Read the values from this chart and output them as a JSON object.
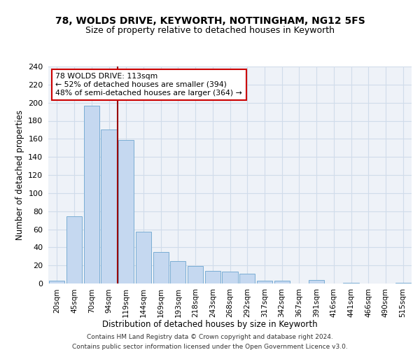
{
  "title": "78, WOLDS DRIVE, KEYWORTH, NOTTINGHAM, NG12 5FS",
  "subtitle": "Size of property relative to detached houses in Keyworth",
  "xlabel": "Distribution of detached houses by size in Keyworth",
  "ylabel": "Number of detached properties",
  "bar_color": "#c5d8f0",
  "bar_edge_color": "#7aadd4",
  "grid_color": "#d0dcea",
  "background_color": "#eef2f8",
  "annotation_box_color": "#cc0000",
  "vline_color": "#990000",
  "vline_x_index": 3.5,
  "annotation_lines": [
    "78 WOLDS DRIVE: 113sqm",
    "← 52% of detached houses are smaller (394)",
    "48% of semi-detached houses are larger (364) →"
  ],
  "categories": [
    "20sqm",
    "45sqm",
    "70sqm",
    "94sqm",
    "119sqm",
    "144sqm",
    "169sqm",
    "193sqm",
    "218sqm",
    "243sqm",
    "268sqm",
    "292sqm",
    "317sqm",
    "342sqm",
    "367sqm",
    "391sqm",
    "416sqm",
    "441sqm",
    "466sqm",
    "490sqm",
    "515sqm"
  ],
  "values": [
    3,
    74,
    197,
    170,
    159,
    57,
    35,
    25,
    19,
    14,
    13,
    11,
    3,
    3,
    0,
    4,
    0,
    1,
    0,
    0,
    1
  ],
  "footer_lines": [
    "Contains HM Land Registry data © Crown copyright and database right 2024.",
    "Contains public sector information licensed under the Open Government Licence v3.0."
  ],
  "ylim": [
    0,
    240
  ],
  "yticks": [
    0,
    20,
    40,
    60,
    80,
    100,
    120,
    140,
    160,
    180,
    200,
    220,
    240
  ]
}
